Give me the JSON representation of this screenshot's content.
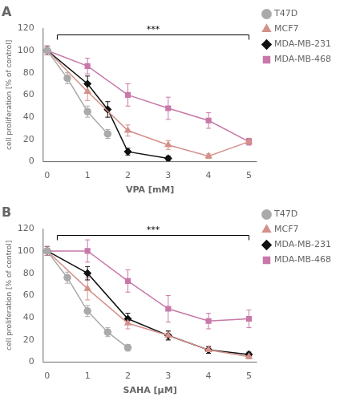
{
  "chart_data": [
    {
      "type": "line",
      "title": "A",
      "xlabel": "VPA [mM]",
      "ylabel": "cell proliferation [% of control]",
      "xlim": [
        -0.1,
        5.2
      ],
      "ylim": [
        0,
        120
      ],
      "xticks": [
        0,
        1,
        2,
        3,
        4,
        5
      ],
      "yticks": [
        0,
        20,
        40,
        60,
        80,
        100,
        120
      ],
      "grid": false,
      "legend": "right",
      "series": [
        {
          "name": "T47D",
          "color": "#aaaaaa",
          "marker": "circle",
          "x": [
            0,
            0.5,
            1,
            1.5
          ],
          "values": [
            100,
            75,
            45,
            25
          ],
          "yerr": [
            4,
            5,
            5,
            4
          ]
        },
        {
          "name": "MCF7",
          "color": "#D4908A",
          "marker": "triangle",
          "x": [
            0,
            1,
            2,
            3,
            4,
            5
          ],
          "values": [
            100,
            63,
            28,
            15,
            5,
            18
          ],
          "yerr": [
            4,
            8,
            5,
            4,
            2,
            3
          ]
        },
        {
          "name": "MDA-MB-231",
          "color": "#111111",
          "marker": "diamond",
          "x": [
            0,
            1,
            1.5,
            2,
            3
          ],
          "values": [
            100,
            70,
            47,
            9,
            3
          ],
          "yerr": [
            4,
            7,
            7,
            3,
            2
          ]
        },
        {
          "name": "MDA-MB-468",
          "color": "#C878A8",
          "marker": "square",
          "x": [
            0,
            1,
            2,
            3,
            4,
            5
          ],
          "values": [
            100,
            86,
            60,
            48,
            37,
            18
          ],
          "yerr": [
            4,
            7,
            10,
            10,
            7,
            3
          ]
        }
      ],
      "annotations": [
        {
          "text": "***",
          "x": [
            0.25,
            5.0
          ],
          "y": 114
        }
      ]
    },
    {
      "type": "line",
      "title": "B",
      "xlabel": "SAHA [μM]",
      "ylabel": "cell proliferation [% of control]",
      "xlim": [
        -0.1,
        5.2
      ],
      "ylim": [
        0,
        120
      ],
      "xticks": [
        0,
        1,
        2,
        3,
        4,
        5
      ],
      "yticks": [
        0,
        20,
        40,
        60,
        80,
        100,
        120
      ],
      "grid": false,
      "legend": "right",
      "series": [
        {
          "name": "T47D",
          "color": "#aaaaaa",
          "marker": "circle",
          "x": [
            0,
            0.5,
            1,
            1.5,
            2
          ],
          "values": [
            100,
            76,
            46,
            27,
            13
          ],
          "yerr": [
            4,
            5,
            5,
            4,
            3
          ]
        },
        {
          "name": "MCF7",
          "color": "#D4908A",
          "marker": "triangle",
          "x": [
            0,
            1,
            2,
            3,
            4,
            5
          ],
          "values": [
            100,
            66,
            35,
            24,
            11,
            5
          ],
          "yerr": [
            4,
            10,
            5,
            4,
            3,
            2
          ]
        },
        {
          "name": "MDA-MB-231",
          "color": "#111111",
          "marker": "diamond",
          "x": [
            0,
            1,
            2,
            3,
            4,
            5
          ],
          "values": [
            100,
            80,
            39,
            24,
            11,
            7
          ],
          "yerr": [
            4,
            6,
            5,
            4,
            3,
            2
          ]
        },
        {
          "name": "MDA-MB-468",
          "color": "#C878A8",
          "marker": "square",
          "x": [
            0,
            1,
            2,
            3,
            4,
            5
          ],
          "values": [
            100,
            100,
            73,
            48,
            37,
            39
          ],
          "yerr": [
            4,
            10,
            10,
            12,
            7,
            8
          ]
        }
      ],
      "annotations": [
        {
          "text": "***",
          "x": [
            0.25,
            5.0
          ],
          "y": 114
        }
      ]
    }
  ]
}
